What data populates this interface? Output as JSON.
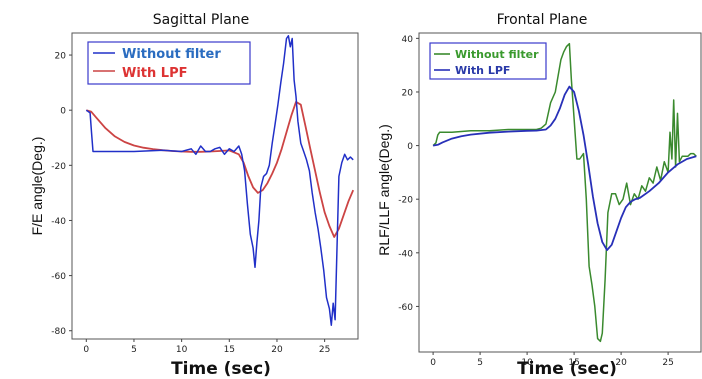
{
  "chart_data": [
    {
      "type": "line",
      "title": "Sagittal Plane",
      "xlabel": "Time (sec)",
      "ylabel": "F/E angle(Deg.)",
      "xlim": [
        -1.5,
        28.5
      ],
      "ylim": [
        -83,
        28
      ],
      "xticks": [
        0,
        5,
        10,
        15,
        20,
        25
      ],
      "yticks": [
        -80,
        -60,
        -40,
        -20,
        0,
        20
      ],
      "legend_position": "top-left",
      "series": [
        {
          "name": "Without filter",
          "color": "#2130c8",
          "legend_color": "#2a6cc0",
          "x": [
            0.0,
            0.4,
            0.55,
            0.7,
            2,
            5,
            8,
            10,
            11,
            11.5,
            12,
            12.5,
            13,
            13.5,
            14,
            14.5,
            15,
            15.5,
            16,
            16.3,
            16.6,
            16.9,
            17.2,
            17.5,
            17.7,
            17.9,
            18.1,
            18.3,
            18.6,
            18.9,
            19.2,
            19.5,
            19.8,
            20.1,
            20.4,
            20.7,
            21.0,
            21.2,
            21.4,
            21.6,
            21.8,
            22.0,
            22.2,
            22.5,
            22.8,
            23.1,
            23.4,
            23.7,
            24.0,
            24.3,
            24.6,
            24.9,
            25.2,
            25.5,
            25.7,
            25.9,
            26.1,
            26.3,
            26.5,
            26.8,
            27.1,
            27.4,
            27.7,
            28.0
          ],
          "values": [
            0,
            -1,
            -8,
            -15,
            -15,
            -15,
            -14.5,
            -15,
            -14,
            -16,
            -13,
            -15,
            -15,
            -14,
            -13.5,
            -16,
            -14,
            -15,
            -13,
            -16,
            -22,
            -34,
            -45,
            -50,
            -57,
            -48,
            -40,
            -28,
            -24,
            -23,
            -20,
            -12,
            -5,
            2,
            10,
            17,
            26,
            27,
            23,
            26,
            11,
            5,
            -4,
            -12,
            -15,
            -18,
            -22,
            -30,
            -37,
            -43,
            -50,
            -58,
            -68,
            -72,
            -78,
            -70,
            -76,
            -50,
            -24,
            -19,
            -16,
            -18,
            -17,
            -18
          ]
        },
        {
          "name": "With LPF",
          "color": "#cc4444",
          "legend_color": "#dd3333",
          "x": [
            0.0,
            0.5,
            1,
            2,
            3,
            4,
            5,
            6,
            7,
            8,
            9,
            10,
            11,
            12,
            13,
            14,
            15,
            16,
            16.5,
            17,
            17.5,
            18,
            18.5,
            19,
            19.5,
            20,
            20.5,
            21,
            21.5,
            22,
            22.5,
            23,
            23.5,
            24,
            24.5,
            25,
            25.5,
            26,
            26.5,
            27,
            27.5,
            28
          ],
          "values": [
            0,
            -0.5,
            -2.5,
            -6.5,
            -9.5,
            -11.5,
            -12.8,
            -13.6,
            -14.1,
            -14.5,
            -14.8,
            -15,
            -15.1,
            -15.1,
            -15,
            -14.8,
            -14.6,
            -16,
            -19,
            -24,
            -28,
            -30,
            -29,
            -26.5,
            -23,
            -19,
            -14,
            -8,
            -2,
            3,
            2,
            -6,
            -14,
            -22,
            -30,
            -37,
            -42,
            -46,
            -43,
            -38,
            -33,
            -29
          ]
        }
      ]
    },
    {
      "type": "line",
      "title": "Frontal Plane",
      "xlabel": "Time (sec)",
      "ylabel": "RLF/LLF angle(Deg.)",
      "xlim": [
        -1.5,
        28.5
      ],
      "ylim": [
        -77,
        42
      ],
      "xticks": [
        0,
        5,
        10,
        15,
        20,
        25
      ],
      "yticks": [
        -60,
        -40,
        -20,
        0,
        20,
        40
      ],
      "legend_position": "top-left",
      "series": [
        {
          "name": "Without filter",
          "color": "#3a8a2e",
          "legend_color": "#3a9a2e",
          "x": [
            0.0,
            0.3,
            0.5,
            0.7,
            2,
            4,
            6,
            8,
            10,
            11,
            11.5,
            12,
            12.5,
            13,
            13.3,
            13.6,
            13.9,
            14.2,
            14.5,
            14.7,
            15.0,
            15.3,
            15.6,
            16.0,
            16.3,
            16.6,
            16.9,
            17.2,
            17.5,
            17.8,
            18.0,
            18.3,
            18.6,
            19.0,
            19.4,
            19.8,
            20.2,
            20.6,
            21.0,
            21.4,
            21.8,
            22.2,
            22.6,
            23.0,
            23.4,
            23.8,
            24.2,
            24.6,
            25.0,
            25.2,
            25.4,
            25.6,
            25.8,
            26.0,
            26.2,
            26.5,
            26.8,
            27.1,
            27.4,
            27.7,
            28.0
          ],
          "values": [
            0,
            1,
            4,
            5,
            5,
            5.5,
            5.5,
            6,
            6,
            6,
            6.5,
            8,
            16,
            20,
            26,
            32,
            35,
            37,
            38,
            25,
            10,
            -5,
            -5,
            -3,
            -20,
            -45,
            -52,
            -60,
            -72,
            -73,
            -70,
            -50,
            -25,
            -18,
            -18,
            -22,
            -20,
            -14,
            -22,
            -18,
            -20,
            -15,
            -17,
            -12,
            -14,
            -8,
            -13,
            -6,
            -10,
            5,
            -5,
            17,
            -8,
            12,
            -6,
            -4,
            -4,
            -4,
            -3,
            -3,
            -4
          ]
        },
        {
          "name": "With LPF",
          "color": "#2830b8",
          "legend_color": "#2a3aa8",
          "x": [
            0.0,
            0.5,
            1,
            2,
            3,
            4,
            6,
            8,
            10,
            11,
            12,
            12.5,
            13,
            13.5,
            14,
            14.5,
            15,
            15.5,
            16,
            16.5,
            17,
            17.5,
            18,
            18.5,
            19,
            19.5,
            20,
            20.5,
            21,
            21.5,
            22,
            23,
            24,
            25,
            26,
            27,
            28
          ],
          "values": [
            0,
            0.3,
            1.2,
            2.6,
            3.5,
            4.1,
            4.8,
            5.2,
            5.5,
            5.6,
            6,
            7.5,
            10,
            14,
            19,
            22,
            20,
            13,
            4,
            -7,
            -19,
            -29,
            -36,
            -39,
            -37,
            -32,
            -27,
            -23,
            -21,
            -20,
            -19.5,
            -17,
            -14,
            -10,
            -7,
            -5,
            -4
          ]
        }
      ]
    }
  ]
}
